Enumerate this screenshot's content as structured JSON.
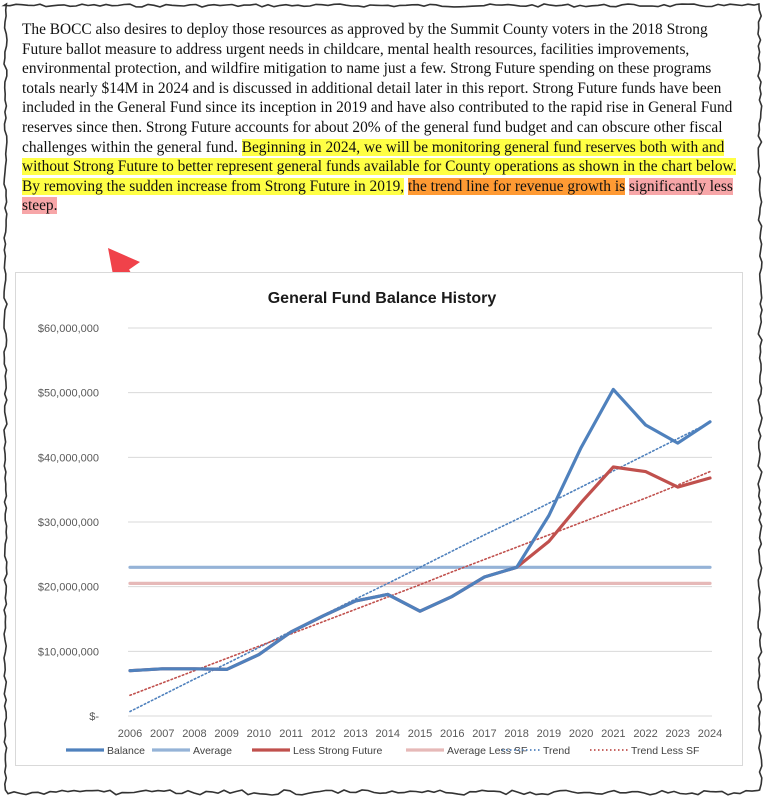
{
  "paragraph": {
    "plain": "The BOCC also desires to deploy those resources as approved by the Summit County voters in the 2018 Strong Future ballot measure to address urgent needs in childcare, mental health resources, facilities improvements, environmental protection, and wildfire mitigation to name just a few.  Strong Future spending on these programs totals nearly $14M in 2024 and is discussed in additional detail later in this report.  Strong Future funds have been included in the General Fund since its inception in 2019 and have also contributed to the rapid rise in General Fund reserves since then.  Strong Future accounts for about 20% of the general fund budget and can obscure other fiscal challenges within the general fund.",
    "highlight_yellow": "Beginning in 2024, we will be monitoring general fund reserves both with and without Strong Future to better represent general funds available for County operations as shown in the chart below.  By removing the sudden increase from Strong Future in 2019,",
    "highlight_orange": "the trend line for revenue growth is",
    "highlight_pink": "significantly less steep."
  },
  "annotation": {
    "arrow_color": "#f0424a"
  },
  "chart_data": {
    "type": "line",
    "title": "General Fund Balance History",
    "x": [
      2006,
      2007,
      2008,
      2009,
      2010,
      2011,
      2012,
      2013,
      2014,
      2015,
      2016,
      2017,
      2018,
      2019,
      2020,
      2021,
      2022,
      2023,
      2024
    ],
    "y_ticks": [
      "$-",
      "$10,000,000",
      "$20,000,000",
      "$30,000,000",
      "$40,000,000",
      "$50,000,000",
      "$60,000,000"
    ],
    "ylim": [
      0,
      60000000
    ],
    "grid": true,
    "legend_position": "bottom",
    "series": [
      {
        "name": "Balance",
        "color": "#4f81bd",
        "style": "solid-thick",
        "values": [
          7000000,
          7300000,
          7300000,
          7200000,
          9500000,
          13000000,
          15500000,
          17800000,
          18800000,
          16200000,
          18500000,
          21500000,
          23000000,
          31000000,
          41500000,
          50500000,
          45000000,
          42200000,
          45500000
        ]
      },
      {
        "name": "Average",
        "color": "#95b3d7",
        "style": "solid-thick",
        "values": [
          23000000,
          23000000,
          23000000,
          23000000,
          23000000,
          23000000,
          23000000,
          23000000,
          23000000,
          23000000,
          23000000,
          23000000,
          23000000,
          23000000,
          23000000,
          23000000,
          23000000,
          23000000,
          23000000
        ]
      },
      {
        "name": "Less Strong Future",
        "color": "#c0504d",
        "style": "solid-thick",
        "values": [
          7000000,
          7300000,
          7300000,
          7200000,
          9500000,
          13000000,
          15500000,
          17800000,
          18800000,
          16200000,
          18500000,
          21500000,
          23000000,
          27000000,
          33000000,
          38500000,
          37800000,
          35400000,
          36800000
        ]
      },
      {
        "name": "Average Less SF",
        "color": "#e6b9b8",
        "style": "solid-thick",
        "values": [
          20500000,
          20500000,
          20500000,
          20500000,
          20500000,
          20500000,
          20500000,
          20500000,
          20500000,
          20500000,
          20500000,
          20500000,
          20500000,
          20500000,
          20500000,
          20500000,
          20500000,
          20500000,
          20500000
        ]
      },
      {
        "name": "Trend",
        "color": "#4f81bd",
        "style": "dotted",
        "values": [
          700000,
          3200000,
          5700000,
          8100000,
          10600000,
          13100000,
          15600000,
          18100000,
          20500000,
          23000000,
          25500000,
          28000000,
          30400000,
          32900000,
          35400000,
          37900000,
          40400000,
          42900000,
          45400000
        ]
      },
      {
        "name": "Trend Less SF",
        "color": "#c0504d",
        "style": "dotted",
        "values": [
          3200000,
          5100000,
          7000000,
          8900000,
          10800000,
          12700000,
          14600000,
          16500000,
          18400000,
          20300000,
          22300000,
          24200000,
          26100000,
          28000000,
          29900000,
          31800000,
          33700000,
          35700000,
          37800000
        ]
      }
    ]
  }
}
